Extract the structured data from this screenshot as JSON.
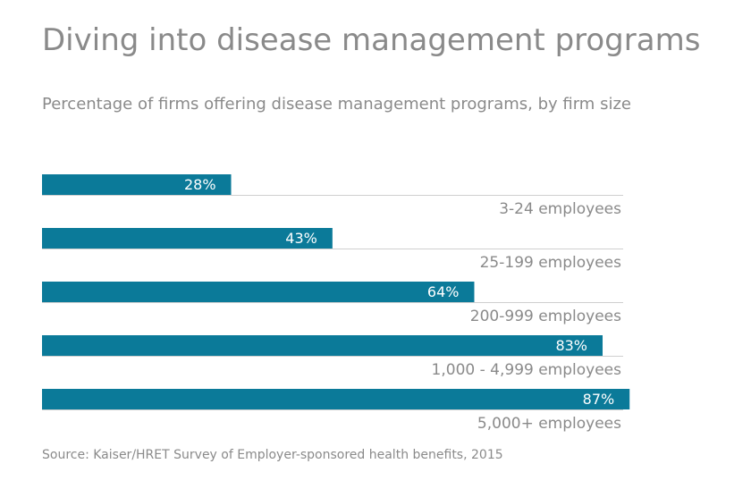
{
  "chart_data": {
    "type": "bar",
    "orientation": "horizontal",
    "title": "Diving into disease management programs",
    "subtitle": "Percentage of firms offering disease management programs, by firm size",
    "categories": [
      "3-24 employees",
      "25-199 employees",
      "200-999 employees",
      "1,000 - 4,999 employees",
      "5,000+ employees"
    ],
    "values": [
      28,
      43,
      64,
      83,
      87
    ],
    "value_labels": [
      "28%",
      "43%",
      "64%",
      "83%",
      "87%"
    ],
    "xlim": [
      0,
      92
    ],
    "bar_color": "#0b7a99",
    "grid": false,
    "legend": "none"
  },
  "source": "Source: Kaiser/HRET Survey of Employer-sponsored health benefits, 2015"
}
